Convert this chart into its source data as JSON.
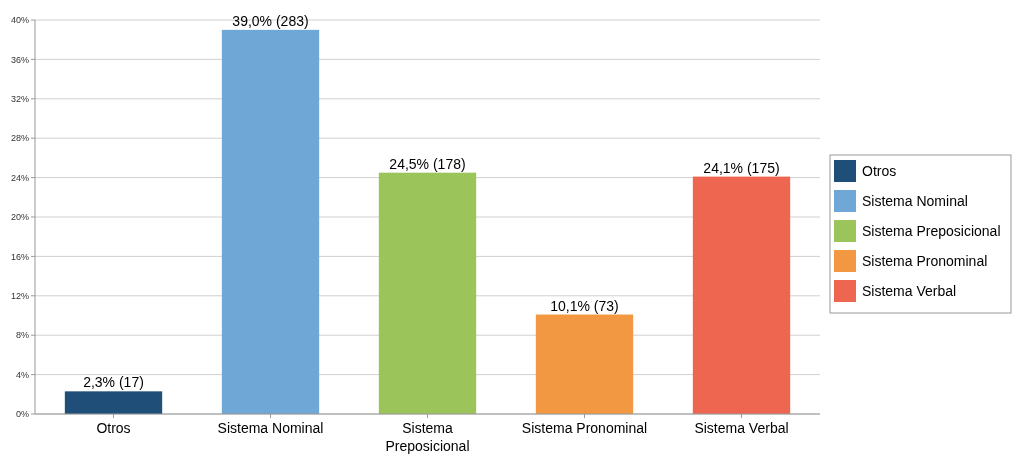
{
  "chart_data": {
    "type": "bar",
    "stacked": true,
    "categories": [
      "Otros",
      "Sistema Nominal",
      "Sistema Preposicional",
      "Sistema Pronominal",
      "Sistema Verbal"
    ],
    "series": [
      {
        "name": "Otros",
        "color": "#1f4e79",
        "values": [
          2.3,
          null,
          null,
          null,
          null
        ],
        "value_labels": [
          "2,3% (17)",
          null,
          null,
          null,
          null
        ]
      },
      {
        "name": "Sistema Nominal",
        "color": "#6fa8d6",
        "values": [
          null,
          39.0,
          null,
          null,
          null
        ],
        "value_labels": [
          null,
          "39,0% (283)",
          null,
          null,
          null
        ]
      },
      {
        "name": "Sistema Preposicional",
        "color": "#9bc55a",
        "values": [
          null,
          null,
          24.5,
          null,
          null
        ],
        "value_labels": [
          null,
          null,
          "24,5% (178)",
          null,
          null
        ]
      },
      {
        "name": "Sistema Pronominal",
        "color": "#f39842",
        "values": [
          null,
          null,
          null,
          10.1,
          null
        ],
        "value_labels": [
          null,
          null,
          null,
          "10,1% (73)",
          null
        ]
      },
      {
        "name": "Sistema Verbal",
        "color": "#ef6650",
        "values": [
          null,
          null,
          null,
          null,
          24.1
        ],
        "value_labels": [
          null,
          null,
          null,
          null,
          "24,1% (175)"
        ]
      }
    ],
    "ylim": [
      0,
      40
    ],
    "yticks": [
      {
        "value": 0,
        "label": "0%"
      },
      {
        "value": 4,
        "label": "4%"
      },
      {
        "value": 8,
        "label": "8%"
      },
      {
        "value": 12,
        "label": "12%"
      },
      {
        "value": 16,
        "label": "16%"
      },
      {
        "value": 20,
        "label": "20%"
      },
      {
        "value": 24,
        "label": "24%"
      },
      {
        "value": 28,
        "label": "28%"
      },
      {
        "value": 32,
        "label": "32%"
      },
      {
        "value": 36,
        "label": "36%"
      },
      {
        "value": 40,
        "label": "40%"
      }
    ],
    "grid": "y",
    "legend": "right"
  }
}
